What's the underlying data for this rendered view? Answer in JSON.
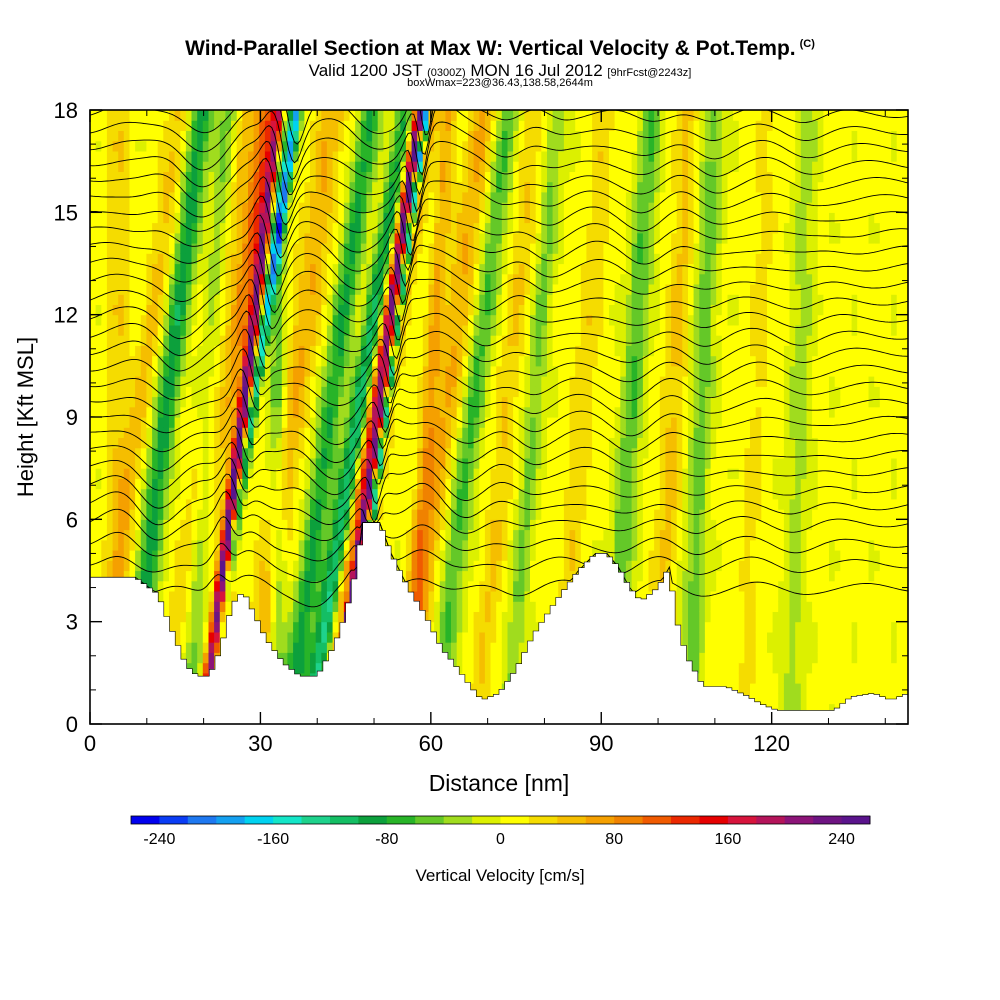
{
  "header": {
    "title": "Wind-Parallel Section at Max W: Vertical Velocity & Pot.Temp.",
    "copyright": "(C)",
    "valid_prefix": "Valid 1200 JST",
    "valid_utc": "(0300Z)",
    "valid_date": "MON 16 Jul 2012",
    "forecast": "[9hrFcst@2243z]",
    "box_info": "boxWmax=223@36.43,138.58,2644m"
  },
  "chart_data": {
    "type": "heatmap",
    "title": "Wind-Parallel Section at Max W: Vertical Velocity & Pot.Temp.",
    "xlabel": "Distance [nm]",
    "ylabel": "Height [Kft MSL]",
    "xlim": [
      0,
      144
    ],
    "ylim": [
      0,
      18
    ],
    "x_ticks": [
      0,
      30,
      60,
      90,
      120
    ],
    "y_ticks": [
      0,
      3,
      6,
      9,
      12,
      15,
      18
    ],
    "colorbar": {
      "label": "Vertical Velocity [cm/s]",
      "range": [
        -260,
        260
      ],
      "tick_labels": [
        "-240",
        "-160",
        "-80",
        "0",
        "80",
        "160",
        "240"
      ],
      "tick_values": [
        -240,
        -160,
        -80,
        0,
        80,
        160,
        240
      ],
      "colors": [
        "#0000ee",
        "#0a3cf5",
        "#1e78f0",
        "#14a0f0",
        "#00d2f0",
        "#14e6c8",
        "#1ed28c",
        "#14be64",
        "#0ca03c",
        "#28b428",
        "#64c828",
        "#a0dc1e",
        "#dcf000",
        "#ffff00",
        "#f5dc00",
        "#f5be00",
        "#f5a000",
        "#f08200",
        "#f05a00",
        "#eb2800",
        "#e60000",
        "#d7143c",
        "#b4145a",
        "#8c1478",
        "#6e1482",
        "#5a148c"
      ]
    },
    "terrain_kft": [
      [
        0,
        4.3
      ],
      [
        8,
        4.3
      ],
      [
        12,
        3.8
      ],
      [
        15,
        2.5
      ],
      [
        17,
        1.7
      ],
      [
        19,
        1.4
      ],
      [
        21,
        1.4
      ],
      [
        23,
        2.2
      ],
      [
        25,
        3.5
      ],
      [
        27,
        3.9
      ],
      [
        29,
        3.2
      ],
      [
        31,
        2.5
      ],
      [
        34,
        1.8
      ],
      [
        37,
        1.4
      ],
      [
        40,
        1.4
      ],
      [
        43,
        2.3
      ],
      [
        45,
        3.2
      ],
      [
        47,
        4.6
      ],
      [
        48,
        5.9
      ],
      [
        51,
        5.9
      ],
      [
        53,
        5.0
      ],
      [
        56,
        4.0
      ],
      [
        59,
        3.2
      ],
      [
        62,
        2.2
      ],
      [
        64,
        1.8
      ],
      [
        67,
        1.1
      ],
      [
        69,
        0.7
      ],
      [
        72,
        0.9
      ],
      [
        75,
        1.6
      ],
      [
        78,
        2.6
      ],
      [
        82,
        3.6
      ],
      [
        86,
        4.5
      ],
      [
        89,
        5.0
      ],
      [
        91,
        5.0
      ],
      [
        93,
        4.6
      ],
      [
        95,
        4.0
      ],
      [
        97,
        3.6
      ],
      [
        100,
        4.0
      ],
      [
        102,
        4.6
      ],
      [
        103,
        3.2
      ],
      [
        105,
        2.0
      ],
      [
        108,
        1.1
      ],
      [
        112,
        1.1
      ],
      [
        116,
        0.8
      ],
      [
        118,
        0.6
      ],
      [
        121,
        0.4
      ],
      [
        124,
        0.4
      ],
      [
        127,
        0.4
      ],
      [
        131,
        0.4
      ],
      [
        134,
        0.8
      ],
      [
        138,
        0.9
      ],
      [
        141,
        0.7
      ],
      [
        144,
        0.9
      ]
    ],
    "updrafts": [
      {
        "x": 28,
        "y": 12,
        "dx": 0.09,
        "w": 2.5,
        "v": 175
      },
      {
        "x": 29,
        "y": 12,
        "dx": 0.09,
        "w": 1.0,
        "v": 220
      },
      {
        "x": 52,
        "y": 11,
        "dx": 0.11,
        "w": 2.2,
        "v": 190
      },
      {
        "x": 52.3,
        "y": 11,
        "dx": 0.11,
        "w": 0.9,
        "v": 230
      },
      {
        "x": 38,
        "y": 12,
        "dx": 0.1,
        "w": 2.5,
        "v": 55
      },
      {
        "x": 64,
        "y": 11,
        "dx": 0.1,
        "w": 2.5,
        "v": 55
      },
      {
        "x": 11,
        "y": 12,
        "dx": 0.1,
        "w": 2.0,
        "v": 40
      },
      {
        "x": 23,
        "y": 12,
        "dx": 0.1,
        "w": 2.0,
        "v": 40
      },
      {
        "x": 75,
        "y": 12,
        "dx": 0.07,
        "w": 2.0,
        "v": 35
      },
      {
        "x": 88,
        "y": 12,
        "dx": 0.06,
        "w": 2.0,
        "v": 30
      },
      {
        "x": 103,
        "y": 10,
        "dx": 0.04,
        "w": 2.0,
        "v": 40
      },
      {
        "x": 118,
        "y": 12,
        "dx": 0.03,
        "w": 2.0,
        "v": 20
      },
      {
        "x": 58,
        "y": 5,
        "dx": 0.05,
        "w": 1.5,
        "v": 55
      },
      {
        "x": 5,
        "y": 5,
        "dx": 0.0,
        "w": 2.0,
        "v": 30
      }
    ],
    "downdrafts": [
      {
        "x": 26,
        "y": 9,
        "dx": 0.11,
        "w": 2.0,
        "v": -140
      },
      {
        "x": 25.8,
        "y": 6,
        "dx": 0.11,
        "w": 0.9,
        "v": -175
      },
      {
        "x": 49.5,
        "y": 11,
        "dx": 0.12,
        "w": 2.0,
        "v": -150
      },
      {
        "x": 49.5,
        "y": 8,
        "dx": 0.12,
        "w": 0.8,
        "v": -200
      },
      {
        "x": 50.0,
        "y": 6.5,
        "dx": 0.1,
        "w": 0.6,
        "v": -240
      },
      {
        "x": 14,
        "y": 10,
        "dx": 0.09,
        "w": 2.0,
        "v": -100
      },
      {
        "x": 43,
        "y": 10,
        "dx": 0.1,
        "w": 2.0,
        "v": -90
      },
      {
        "x": 68,
        "y": 10,
        "dx": 0.09,
        "w": 2.0,
        "v": -70
      },
      {
        "x": 79,
        "y": 11,
        "dx": 0.06,
        "w": 1.7,
        "v": -50
      },
      {
        "x": 96,
        "y": 11,
        "dx": 0.05,
        "w": 2.0,
        "v": -65
      },
      {
        "x": 108,
        "y": 11,
        "dx": 0.03,
        "w": 2.0,
        "v": -55
      },
      {
        "x": 33,
        "y": 4,
        "dx": 0.0,
        "w": 1.5,
        "v": -60
      },
      {
        "x": 20,
        "y": 7,
        "dx": 0.05,
        "w": 2.0,
        "v": -50
      },
      {
        "x": 125,
        "y": 10,
        "dx": 0.02,
        "w": 2.0,
        "v": -35
      }
    ],
    "isentrope_levels_kft": [
      4.0,
      4.7,
      5.3,
      5.9,
      6.4,
      6.9,
      7.4,
      7.9,
      8.4,
      8.9,
      9.4,
      9.9,
      10.4,
      10.9,
      11.4,
      11.9,
      12.4,
      12.9,
      13.4,
      13.9,
      14.4,
      14.9,
      15.4,
      15.9,
      16.4,
      16.9,
      17.4,
      17.9
    ]
  }
}
